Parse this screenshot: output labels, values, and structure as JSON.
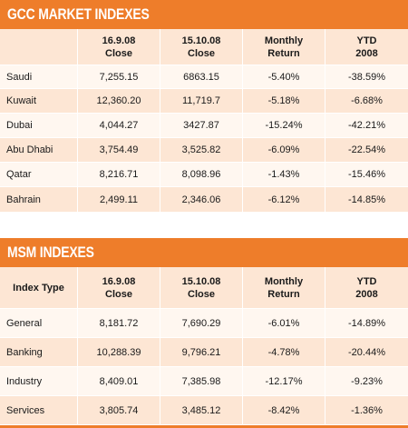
{
  "gcc": {
    "title": "GCC MARKET INDEXES",
    "headers": {
      "c0": "",
      "c1a": "16.9.08",
      "c1b": "Close",
      "c2a": "15.10.08",
      "c2b": "Close",
      "c3a": "Monthly",
      "c3b": "Return",
      "c4a": "YTD",
      "c4b": "2008"
    },
    "rows": [
      {
        "name": "Saudi",
        "close1": "7,255.15",
        "close2": "6863.15",
        "monthly": "-5.40%",
        "ytd": "-38.59%"
      },
      {
        "name": "Kuwait",
        "close1": "12,360.20",
        "close2": "11,719.7",
        "monthly": "-5.18%",
        "ytd": "-6.68%"
      },
      {
        "name": "Dubai",
        "close1": "4,044.27",
        "close2": "3427.87",
        "monthly": "-15.24%",
        "ytd": "-42.21%"
      },
      {
        "name": "Abu Dhabi",
        "close1": "3,754.49",
        "close2": "3,525.82",
        "monthly": "-6.09%",
        "ytd": "-22.54%"
      },
      {
        "name": "Qatar",
        "close1": "8,216.71",
        "close2": "8,098.96",
        "monthly": "-1.43%",
        "ytd": "-15.46%"
      },
      {
        "name": "Bahrain",
        "close1": "2,499.11",
        "close2": "2,346.06",
        "monthly": "-6.12%",
        "ytd": "-14.85%"
      }
    ]
  },
  "msm": {
    "title": "MSM INDEXES",
    "headers": {
      "c0": "Index Type",
      "c1a": "16.9.08",
      "c1b": "Close",
      "c2a": "15.10.08",
      "c2b": "Close",
      "c3a": "Monthly",
      "c3b": "Return",
      "c4a": "YTD",
      "c4b": "2008"
    },
    "rows": [
      {
        "name": "General",
        "close1": "8,181.72",
        "close2": "7,690.29",
        "monthly": "-6.01%",
        "ytd": "-14.89%"
      },
      {
        "name": "Banking",
        "close1": "10,288.39",
        "close2": "9,796.21",
        "monthly": "-4.78%",
        "ytd": "-20.44%"
      },
      {
        "name": "Industry",
        "close1": "8,409.01",
        "close2": "7,385.98",
        "monthly": "-12.17%",
        "ytd": "-9.23%"
      },
      {
        "name": "Services",
        "close1": "3,805.74",
        "close2": "3,485.12",
        "monthly": "-8.42%",
        "ytd": "-1.36%"
      }
    ]
  },
  "colors": {
    "accent": "#ee7d2a",
    "row_dark": "#fde6d4",
    "row_light": "#fff7f0"
  }
}
